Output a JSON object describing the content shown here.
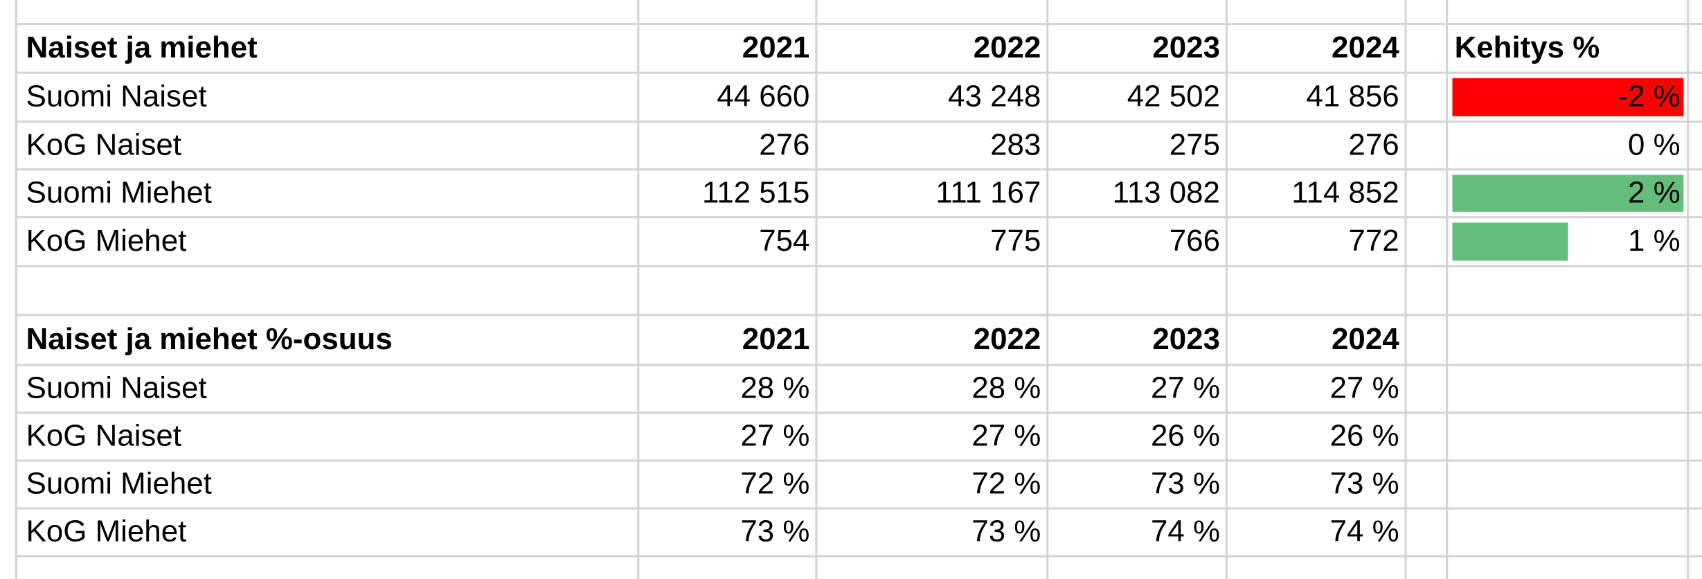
{
  "table1": {
    "title": "Naiset ja miehet",
    "years": [
      "2021",
      "2022",
      "2023",
      "2024"
    ],
    "rows": [
      {
        "label": "Suomi Naiset",
        "values": [
          "44 660",
          "43 248",
          "42 502",
          "41 856"
        ]
      },
      {
        "label": "KoG Naiset",
        "values": [
          "276",
          "283",
          "275",
          "276"
        ]
      },
      {
        "label": "Suomi Miehet",
        "values": [
          "112 515",
          "111 167",
          "113 082",
          "114 852"
        ]
      },
      {
        "label": "KoG Miehet",
        "values": [
          "754",
          "775",
          "766",
          "772"
        ]
      }
    ]
  },
  "kehitys": {
    "title": "Kehitys %",
    "values": [
      -2,
      0,
      2,
      1
    ],
    "value_labels": [
      "-2 %",
      "0 %",
      "2 %",
      "1 %"
    ],
    "negative_color": "#ff0000",
    "positive_color": "#63be7b"
  },
  "table2": {
    "title": "Naiset ja miehet %-osuus",
    "years": [
      "2021",
      "2022",
      "2023",
      "2024"
    ],
    "rows": [
      {
        "label": "Suomi Naiset",
        "values": [
          "28 %",
          "28 %",
          "27 %",
          "27 %"
        ]
      },
      {
        "label": "KoG Naiset",
        "values": [
          "27 %",
          "27 %",
          "26 %",
          "26 %"
        ]
      },
      {
        "label": "Suomi Miehet",
        "values": [
          "72 %",
          "72 %",
          "73 %",
          "73 %"
        ]
      },
      {
        "label": "KoG Miehet",
        "values": [
          "73 %",
          "73 %",
          "74 %",
          "74 %"
        ]
      }
    ]
  }
}
